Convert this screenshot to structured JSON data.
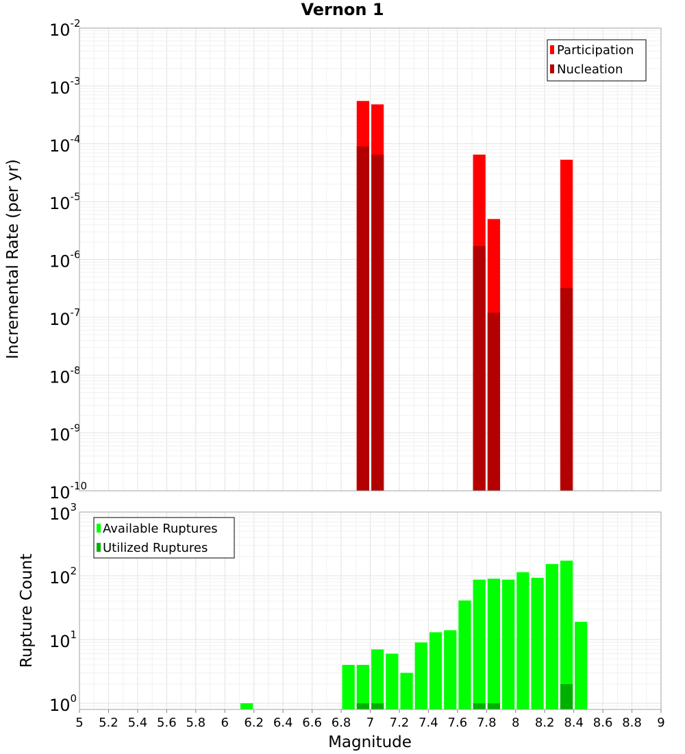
{
  "chart_data": [
    {
      "type": "bar",
      "panel": "top",
      "title": "Vernon 1",
      "xlabel": "",
      "ylabel": "Incremental Rate (per yr)",
      "yscale": "log",
      "ylim": [
        1e-10,
        0.01
      ],
      "xlim": [
        5,
        9
      ],
      "y_tick_exponents": [
        -10,
        -9,
        -8,
        -7,
        -6,
        -5,
        -4,
        -3,
        -2
      ],
      "grid": true,
      "legend_position": "top-right",
      "bin_width": 0.1,
      "series": [
        {
          "name": "Participation",
          "color": "#ff0000",
          "x": [
            6.95,
            7.05,
            7.75,
            7.85,
            8.35
          ],
          "values": [
            0.00055,
            0.00048,
            6.5e-05,
            5e-06,
            5.3e-05
          ]
        },
        {
          "name": "Nucleation",
          "color": "#b30000",
          "x": [
            6.95,
            7.05,
            7.75,
            7.85,
            8.35
          ],
          "values": [
            9e-05,
            6.5e-05,
            1.7e-06,
            1.2e-07,
            3.2e-07
          ]
        }
      ]
    },
    {
      "type": "bar",
      "panel": "bottom",
      "xlabel": "Magnitude",
      "ylabel": "Rupture Count",
      "yscale": "log",
      "ylim": [
        0.8,
        1000
      ],
      "xlim": [
        5,
        9
      ],
      "x_ticks": [
        "5",
        "5.2",
        "5.4",
        "5.6",
        "5.8",
        "6",
        "6.2",
        "6.4",
        "6.6",
        "6.8",
        "7",
        "7.2",
        "7.4",
        "7.6",
        "7.8",
        "8",
        "8.2",
        "8.4",
        "8.6",
        "8.8",
        "9"
      ],
      "y_tick_exponents": [
        0,
        1,
        2,
        3
      ],
      "grid": true,
      "legend_position": "top-left",
      "bin_width": 0.1,
      "series": [
        {
          "name": "Available Ruptures",
          "color": "#00ff00",
          "x": [
            6.15,
            6.85,
            6.95,
            7.05,
            7.15,
            7.25,
            7.35,
            7.45,
            7.55,
            7.65,
            7.75,
            7.85,
            7.95,
            8.05,
            8.15,
            8.25,
            8.35,
            8.45
          ],
          "values": [
            1,
            4,
            4,
            7,
            6,
            3,
            9,
            13,
            14,
            41,
            87,
            90,
            87,
            114,
            93,
            153,
            173,
            19
          ]
        },
        {
          "name": "Utilized Ruptures",
          "color": "#00b000",
          "x": [
            6.95,
            7.05,
            7.75,
            7.85,
            8.35
          ],
          "values": [
            1,
            1,
            1,
            1,
            2
          ]
        }
      ]
    }
  ]
}
